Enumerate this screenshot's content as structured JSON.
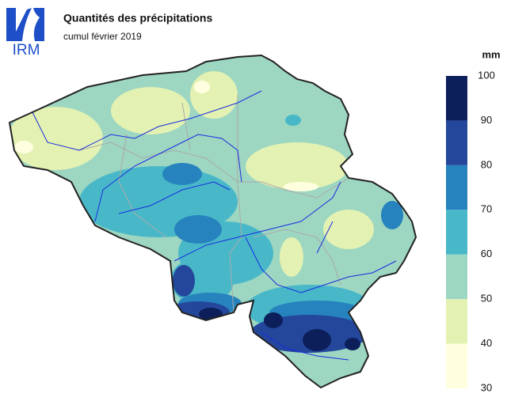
{
  "header": {
    "logo": "IRM",
    "title": "Quantités des précipitations",
    "subtitle": "cumul février 2019"
  },
  "legend": {
    "unit": "mm",
    "ticks": [
      30,
      40,
      50,
      60,
      70,
      80,
      90,
      100
    ],
    "colors": [
      "#ffffe0",
      "#e3f2b2",
      "#9dd6c1",
      "#48b8c8",
      "#2683bd",
      "#24479c",
      "#0c1f5a"
    ]
  }
}
